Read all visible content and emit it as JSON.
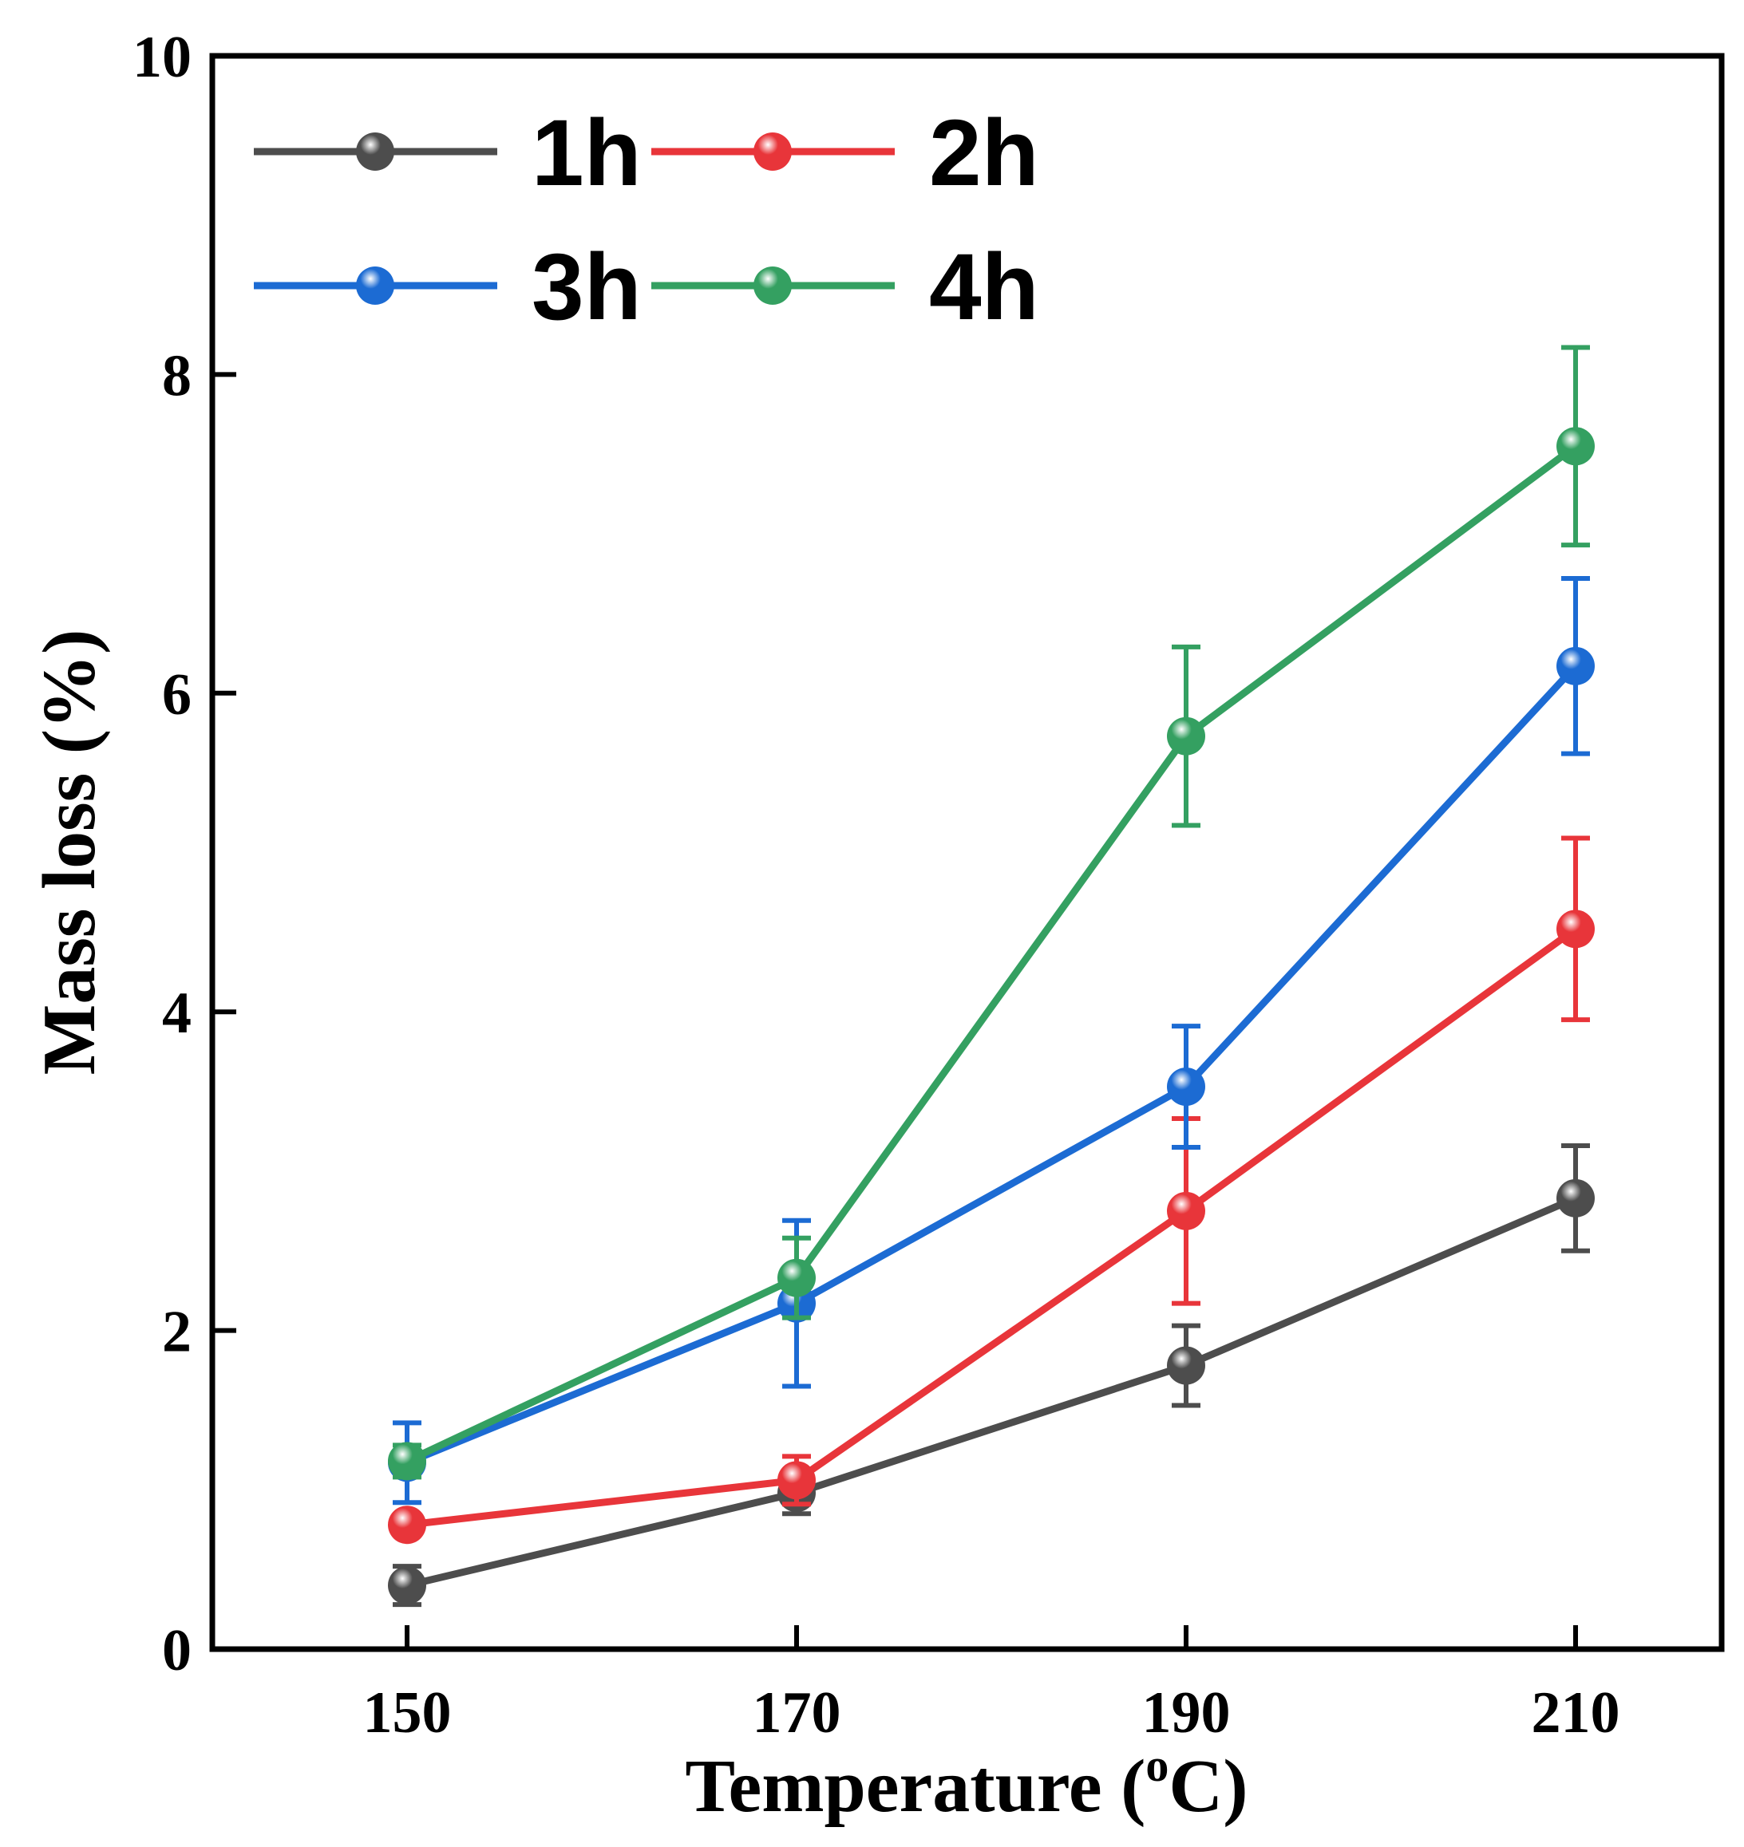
{
  "chart_data": {
    "type": "line",
    "title": "",
    "xlabel": "Temperature (",
    "xlabel_sup": "o",
    "xlabel_suffix": "C)",
    "ylabel": "Mass loss (%)",
    "x": [
      150,
      170,
      190,
      210
    ],
    "x_tick_labels": [
      "150",
      "170",
      "190",
      "210"
    ],
    "xlim": [
      140,
      217.5
    ],
    "ylim": [
      0,
      10
    ],
    "y_ticks": [
      0,
      2,
      4,
      6,
      8,
      10
    ],
    "y_tick_labels": [
      "0",
      "2",
      "4",
      "6",
      "8",
      "10"
    ],
    "legend_position": "top-left",
    "series": [
      {
        "name": "1h",
        "color": "#4d4d4d",
        "values": [
          0.4,
          0.98,
          1.78,
          2.83
        ],
        "errors": [
          0.12,
          0.13,
          0.25,
          0.33
        ]
      },
      {
        "name": "2h",
        "color": "#e8353a",
        "values": [
          0.78,
          1.06,
          2.75,
          4.52
        ],
        "errors": [
          0.06,
          0.15,
          0.58,
          0.57
        ]
      },
      {
        "name": "3h",
        "color": "#1c6bd3",
        "values": [
          1.17,
          2.17,
          3.53,
          6.17
        ],
        "errors": [
          0.25,
          0.52,
          0.38,
          0.55
        ]
      },
      {
        "name": "4h",
        "color": "#34a061",
        "values": [
          1.18,
          2.33,
          5.73,
          7.55
        ],
        "errors": [
          0.1,
          0.25,
          0.56,
          0.62
        ]
      }
    ]
  }
}
